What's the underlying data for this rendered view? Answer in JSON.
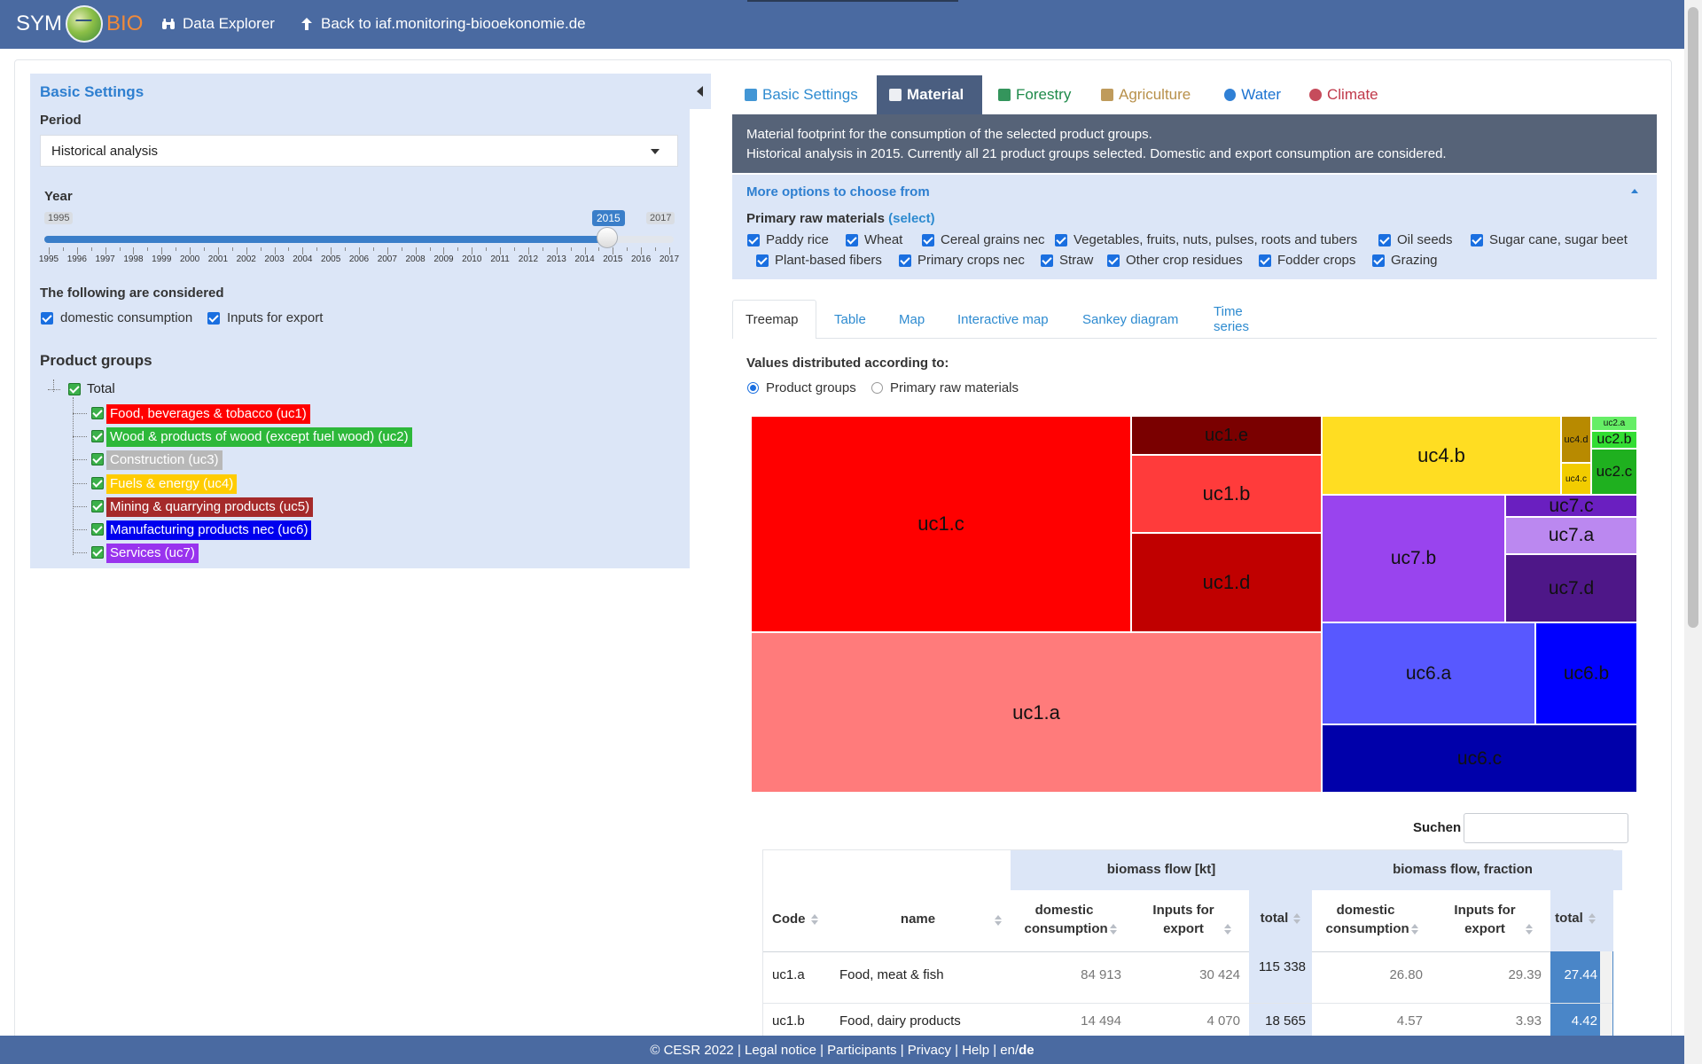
{
  "navbar": {
    "brand_sym": "SYM",
    "brand_bio": "BIO",
    "data_explorer": "Data Explorer",
    "back_link": "Back to iaf.monitoring-biooekonomie.de"
  },
  "sidebar": {
    "title": "Basic Settings",
    "period_label": "Period",
    "period_value": "Historical analysis",
    "year_label": "Year",
    "year_min": "1995",
    "year_max": "2017",
    "year_value": "2015",
    "year_ticks": [
      "1995",
      "1996",
      "1997",
      "1998",
      "1999",
      "2000",
      "2001",
      "2002",
      "2003",
      "2004",
      "2005",
      "2006",
      "2007",
      "2008",
      "2009",
      "2010",
      "2011",
      "2012",
      "2013",
      "2014",
      "2015",
      "2016",
      "2017"
    ],
    "considered_label": "The following are considered",
    "domestic_label": "domestic consumption",
    "export_label": "Inputs for export",
    "product_groups_label": "Product groups",
    "tree_root": "Total",
    "product_groups": [
      {
        "label": "Food, beverages & tobacco (uc1)",
        "color": "#ff0000"
      },
      {
        "label": "Wood & products of wood (except fuel wood) (uc2)",
        "color": "#2db83a"
      },
      {
        "label": "Construction (uc3)",
        "color": "#b8b8b8"
      },
      {
        "label": "Fuels & energy (uc4)",
        "color": "#ffcc00"
      },
      {
        "label": "Mining & quarrying products (uc5)",
        "color": "#a52a2a"
      },
      {
        "label": "Manufacturing products nec (uc6)",
        "color": "#0000ee"
      },
      {
        "label": "Services (uc7)",
        "color": "#9933ee"
      }
    ]
  },
  "main_tabs": [
    {
      "label": "Basic Settings",
      "icon": "binoculars-icon",
      "color": "#2e8bd0"
    },
    {
      "label": "Material",
      "icon": "shuffle-icon",
      "color": "#ffffff"
    },
    {
      "label": "Forestry",
      "icon": "tree-icon",
      "color": "#1e8a4a"
    },
    {
      "label": "Agriculture",
      "icon": "leaf-icon",
      "color": "#b8904a"
    },
    {
      "label": "Water",
      "icon": "tint-icon",
      "color": "#1a72d0"
    },
    {
      "label": "Climate",
      "icon": "globe-icon",
      "color": "#c0394a"
    }
  ],
  "info": {
    "line1": "Material footprint for the consumption of the selected product groups.",
    "line2": "Historical analysis in 2015. Currently all 21 product groups selected. Domestic and export consumption are considered."
  },
  "options": {
    "title": "More options to choose from",
    "primary_label": "Primary raw materials",
    "select_link": "(select)",
    "materials_row1": [
      "Paddy rice",
      "Wheat",
      "Cereal grains nec",
      "Vegetables, fruits, nuts, pulses, roots and tubers",
      "Oil seeds",
      "Sugar cane, sugar beet"
    ],
    "materials_row2": [
      "Plant-based fibers",
      "Primary crops nec",
      "Straw",
      "Other crop residues",
      "Fodder crops",
      "Grazing"
    ]
  },
  "sub_tabs": [
    "Treemap",
    "Table",
    "Map",
    "Interactive map",
    "Sankey diagram",
    "Time series"
  ],
  "distribution": {
    "label": "Values distributed according to:",
    "option1": "Product groups",
    "option2": "Primary raw materials"
  },
  "treemap": [
    {
      "label": "uc1.c",
      "color": "#ff0000",
      "text": "#111111"
    },
    {
      "label": "uc1.e",
      "color": "#7a0000",
      "text": "#111111"
    },
    {
      "label": "uc1.b",
      "color": "#ff3b3b",
      "text": "#111111"
    },
    {
      "label": "uc1.d",
      "color": "#c00000",
      "text": "#111111"
    },
    {
      "label": "uc1.a",
      "color": "#ff7b7b",
      "text": "#111111"
    },
    {
      "label": "uc4.b",
      "color": "#ffdd22",
      "text": "#111111"
    },
    {
      "label": "uc4.d",
      "color": "#b88a00",
      "text": "#111111"
    },
    {
      "label": "uc4.c",
      "color": "#f2cc00",
      "text": "#111111"
    },
    {
      "label": "uc2.a",
      "color": "#66ee66",
      "text": "#111111"
    },
    {
      "label": "uc2.b",
      "color": "#33dd33",
      "text": "#111111"
    },
    {
      "label": "uc2.c",
      "color": "#1fb01f",
      "text": "#111111"
    },
    {
      "label": "uc7.b",
      "color": "#9944ee",
      "text": "#111111"
    },
    {
      "label": "uc7.c",
      "color": "#6a1fc0",
      "text": "#111111"
    },
    {
      "label": "uc7.a",
      "color": "#bb88f0",
      "text": "#111111"
    },
    {
      "label": "uc7.d",
      "color": "#4e1788",
      "text": "#111111"
    },
    {
      "label": "uc6.a",
      "color": "#5858ff",
      "text": "#111111"
    },
    {
      "label": "uc6.b",
      "color": "#0000ff",
      "text": "#111111"
    },
    {
      "label": "uc6.c",
      "color": "#0000aa",
      "text": "#111111"
    }
  ],
  "table": {
    "search_label": "Suchen",
    "group1": "biomass flow [kt]",
    "group2": "biomass flow, fraction",
    "col_code": "Code",
    "col_name": "name",
    "col_domestic": "domestic consumption",
    "col_export": "Inputs for export",
    "col_total": "total",
    "rows": [
      {
        "code": "uc1.a",
        "name": "Food, meat & fish",
        "dom": "84 913",
        "exp": "30 424",
        "total": "115 338",
        "fdom": "26.80",
        "fexp": "29.39",
        "ftotal": "27.44"
      },
      {
        "code": "uc1.b",
        "name": "Food, dairy products",
        "dom": "14 494",
        "exp": "4 070",
        "total": "18 565",
        "fdom": "4.57",
        "fexp": "3.93",
        "ftotal": "4.42"
      }
    ]
  },
  "footer": {
    "copyright": "© CESR 2022",
    "legal": "Legal notice",
    "participants": "Participants",
    "privacy": "Privacy",
    "help": "Help",
    "lang_en": "en",
    "lang_de": "de"
  }
}
